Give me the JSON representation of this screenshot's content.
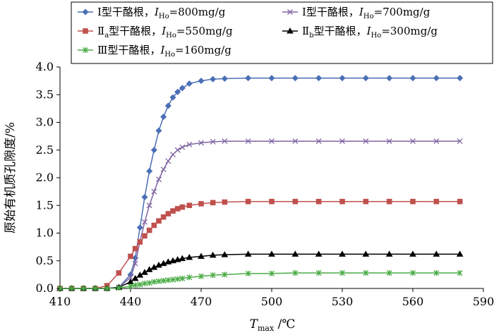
{
  "chart_data": {
    "type": "line",
    "xlabel": "T_max /℃",
    "xlabel_main": "T",
    "xlabel_sub": "max",
    "xlabel_unit": " /℃",
    "ylabel": "原始有机质孔隙度/%",
    "xlim": [
      410,
      590
    ],
    "ylim": [
      0,
      4.0
    ],
    "xticks": [
      "410",
      "440",
      "470",
      "500",
      "530",
      "560",
      "590"
    ],
    "yticks": [
      "0.0",
      "0.5",
      "1.0",
      "1.5",
      "2.0",
      "2.5",
      "3.0",
      "3.5",
      "4.0"
    ],
    "grid": false,
    "legend_position": "top",
    "series": [
      {
        "name": "Ⅰ型干酪根，IHo=800mg/g",
        "legend_prefix": "Ⅰ型干酪根，",
        "legend_italic": "I",
        "legend_sub": "Ho",
        "legend_suffix": "=800mg/g",
        "color": "#4a6fb5",
        "marker": "diamond",
        "x": [
          410,
          415,
          420,
          425,
          430,
          435,
          440,
          442,
          444,
          446,
          448,
          450,
          452,
          454,
          456,
          458,
          460,
          462,
          465,
          470,
          475,
          480,
          490,
          500,
          510,
          520,
          530,
          540,
          550,
          560,
          570,
          580
        ],
        "y": [
          0,
          0,
          0,
          0,
          0,
          0.02,
          0.25,
          0.55,
          1.1,
          1.65,
          2.12,
          2.5,
          2.85,
          3.1,
          3.3,
          3.45,
          3.55,
          3.62,
          3.7,
          3.75,
          3.78,
          3.79,
          3.8,
          3.8,
          3.8,
          3.8,
          3.8,
          3.8,
          3.8,
          3.8,
          3.8,
          3.8
        ]
      },
      {
        "name": "Ⅰ型干酪根，IHo=700mg/g",
        "legend_prefix": "Ⅰ型干酪根，",
        "legend_italic": "I",
        "legend_sub": "Ho",
        "legend_suffix": "=700mg/g",
        "color": "#8064a2",
        "marker": "x",
        "x": [
          410,
          415,
          420,
          425,
          430,
          435,
          440,
          442,
          444,
          446,
          448,
          450,
          452,
          454,
          456,
          458,
          460,
          462,
          465,
          470,
          475,
          480,
          490,
          500,
          510,
          520,
          530,
          540,
          550,
          560,
          570,
          580
        ],
        "y": [
          0,
          0,
          0,
          0,
          0,
          0.02,
          0.2,
          0.45,
          0.85,
          1.2,
          1.5,
          1.75,
          1.97,
          2.15,
          2.3,
          2.42,
          2.5,
          2.55,
          2.6,
          2.63,
          2.65,
          2.66,
          2.66,
          2.66,
          2.66,
          2.66,
          2.66,
          2.66,
          2.66,
          2.66,
          2.66,
          2.66
        ]
      },
      {
        "name": "Ⅱa型干酪根，IHo=550mg/g",
        "legend_prefix": "Ⅱ",
        "legend_prefix_sub": "a",
        "legend_prefix_rest": "型干酪根，",
        "legend_italic": "I",
        "legend_sub": "Ho",
        "legend_suffix": "=550mg/g",
        "color": "#c0504d",
        "marker": "square",
        "x": [
          410,
          415,
          420,
          425,
          430,
          435,
          440,
          442,
          444,
          446,
          448,
          450,
          452,
          454,
          456,
          458,
          460,
          462,
          465,
          470,
          475,
          480,
          490,
          500,
          510,
          520,
          530,
          540,
          550,
          560,
          570,
          580
        ],
        "y": [
          0,
          0,
          0,
          0,
          0.05,
          0.28,
          0.58,
          0.72,
          0.84,
          0.95,
          1.05,
          1.14,
          1.22,
          1.29,
          1.35,
          1.4,
          1.44,
          1.47,
          1.5,
          1.53,
          1.55,
          1.56,
          1.57,
          1.57,
          1.57,
          1.57,
          1.57,
          1.57,
          1.57,
          1.57,
          1.57,
          1.57
        ]
      },
      {
        "name": "Ⅱb型干酪根，IHo=300mg/g",
        "legend_prefix": "Ⅱ",
        "legend_prefix_sub": "b",
        "legend_prefix_rest": "型干酪根，",
        "legend_italic": "I",
        "legend_sub": "Ho",
        "legend_suffix": "=300mg/g",
        "color": "#000000",
        "marker": "triangle",
        "x": [
          410,
          415,
          420,
          425,
          430,
          435,
          440,
          442,
          444,
          446,
          448,
          450,
          452,
          454,
          456,
          458,
          460,
          462,
          465,
          470,
          475,
          480,
          490,
          500,
          510,
          520,
          530,
          540,
          550,
          560,
          570,
          580
        ],
        "y": [
          0,
          0,
          0,
          0,
          0,
          0.02,
          0.12,
          0.18,
          0.24,
          0.29,
          0.34,
          0.38,
          0.42,
          0.45,
          0.48,
          0.5,
          0.52,
          0.54,
          0.56,
          0.58,
          0.6,
          0.61,
          0.62,
          0.62,
          0.62,
          0.62,
          0.62,
          0.62,
          0.62,
          0.62,
          0.62,
          0.62
        ]
      },
      {
        "name": "Ⅲ型干酪根，IHo=160mg/g",
        "legend_prefix": "Ⅲ型干酪根，",
        "legend_italic": "I",
        "legend_sub": "Ho",
        "legend_suffix": "=160mg/g",
        "color": "#4aac46",
        "marker": "star",
        "x": [
          410,
          415,
          420,
          425,
          430,
          435,
          440,
          442,
          444,
          446,
          448,
          450,
          452,
          454,
          456,
          458,
          460,
          462,
          465,
          470,
          475,
          480,
          490,
          500,
          510,
          520,
          530,
          540,
          550,
          560,
          570,
          580
        ],
        "y": [
          0,
          0,
          0,
          0,
          0,
          0.01,
          0.04,
          0.06,
          0.07,
          0.09,
          0.1,
          0.12,
          0.13,
          0.14,
          0.15,
          0.16,
          0.17,
          0.18,
          0.2,
          0.22,
          0.24,
          0.25,
          0.27,
          0.27,
          0.28,
          0.28,
          0.28,
          0.28,
          0.28,
          0.28,
          0.28,
          0.28
        ]
      }
    ]
  }
}
